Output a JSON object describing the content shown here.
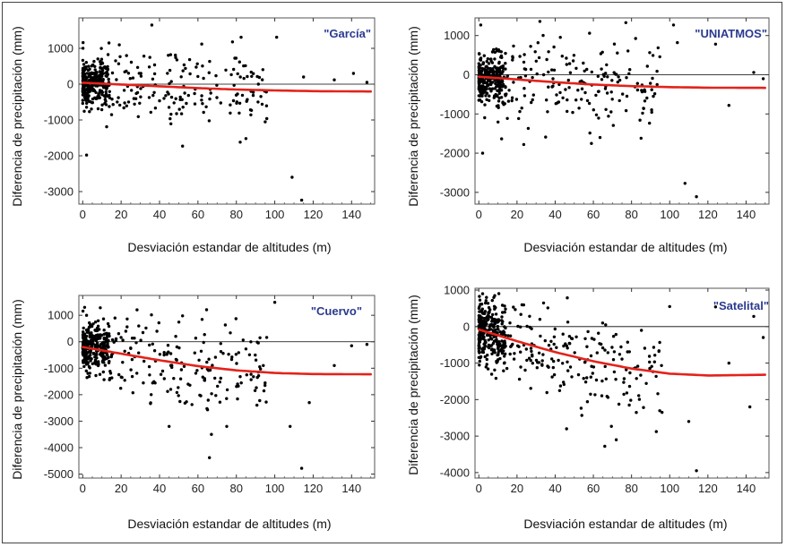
{
  "colors": {
    "points": "#000000",
    "trend": "#e3231b",
    "zero_line": "#000000",
    "panel_title": "#2b3a8f",
    "frame": "#444444"
  },
  "chart_data": [
    {
      "type": "scatter",
      "title": "\"García\"",
      "xlabel": "Desviación estandar de altitudes (m)",
      "ylabel": "Diferencia de precipitación (mm)",
      "xlim": [
        -2,
        152
      ],
      "ylim": [
        -3350,
        1850
      ],
      "xticks": [
        0,
        20,
        40,
        60,
        80,
        100,
        120,
        140
      ],
      "yticks": [
        -3000,
        -2000,
        -1000,
        0,
        1000
      ],
      "seed": 11,
      "n_dense": 260,
      "n_sparse": 190,
      "spread_dense": 420,
      "spread_sparse": 520,
      "trend": {
        "x": [
          0,
          20,
          40,
          60,
          80,
          100,
          120,
          150
        ],
        "y": [
          40,
          -10,
          -60,
          -110,
          -150,
          -175,
          -195,
          -205
        ]
      },
      "outliers": [
        {
          "x": 2,
          "y": -1980
        },
        {
          "x": 36,
          "y": 1650
        },
        {
          "x": 62,
          "y": 1120
        },
        {
          "x": 78,
          "y": 1180
        },
        {
          "x": 101,
          "y": 1310
        },
        {
          "x": 109,
          "y": -2600
        },
        {
          "x": 114,
          "y": -3240
        },
        {
          "x": 82,
          "y": -1620
        },
        {
          "x": 85,
          "y": -1520
        },
        {
          "x": 52,
          "y": -1730
        },
        {
          "x": 141,
          "y": 300
        },
        {
          "x": 148,
          "y": 50
        },
        {
          "x": 131,
          "y": 120
        },
        {
          "x": 115,
          "y": 200
        }
      ]
    },
    {
      "type": "scatter",
      "title": "\"UNIATMOS\"",
      "xlabel": "Desviación estandar de altitudes (m)",
      "ylabel": "Diferencia de precipitación (mm)",
      "xlim": [
        -2,
        152
      ],
      "ylim": [
        -3300,
        1450
      ],
      "xticks": [
        0,
        20,
        40,
        60,
        80,
        100,
        120,
        140
      ],
      "yticks": [
        -3000,
        -2000,
        -1000,
        0,
        1000
      ],
      "seed": 23,
      "n_dense": 260,
      "n_sparse": 190,
      "spread_dense": 380,
      "spread_sparse": 560,
      "trend": {
        "x": [
          0,
          20,
          40,
          60,
          80,
          100,
          120,
          150
        ],
        "y": [
          -50,
          -120,
          -190,
          -250,
          -290,
          -315,
          -330,
          -335
        ]
      },
      "outliers": [
        {
          "x": 1,
          "y": 1270
        },
        {
          "x": 2,
          "y": -2000
        },
        {
          "x": 32,
          "y": 1360
        },
        {
          "x": 58,
          "y": 1060
        },
        {
          "x": 77,
          "y": 1330
        },
        {
          "x": 102,
          "y": 1270
        },
        {
          "x": 104,
          "y": 820
        },
        {
          "x": 108,
          "y": -2770
        },
        {
          "x": 114,
          "y": -3110
        },
        {
          "x": 85,
          "y": -1620
        },
        {
          "x": 35,
          "y": -1590
        },
        {
          "x": 131,
          "y": -780
        },
        {
          "x": 144,
          "y": 60
        },
        {
          "x": 124,
          "y": 780
        },
        {
          "x": 149,
          "y": -100
        }
      ]
    },
    {
      "type": "scatter",
      "title": "\"Cuervo\"",
      "xlabel": "Desviación estandar de altitudes (m)",
      "ylabel": "Diferencia de precipitación (mm)",
      "xlim": [
        -2,
        152
      ],
      "ylim": [
        -5150,
        1750
      ],
      "xticks": [
        0,
        20,
        40,
        60,
        80,
        100,
        120,
        140
      ],
      "yticks": [
        -5000,
        -4000,
        -3000,
        -2000,
        -1000,
        0,
        1000
      ],
      "seed": 37,
      "n_dense": 260,
      "n_sparse": 200,
      "spread_dense": 600,
      "spread_sparse": 780,
      "trend": {
        "x": [
          0,
          20,
          40,
          60,
          80,
          100,
          120,
          150
        ],
        "y": [
          -200,
          -450,
          -700,
          -920,
          -1080,
          -1180,
          -1220,
          -1230
        ]
      },
      "outliers": [
        {
          "x": 1,
          "y": 1300
        },
        {
          "x": 2,
          "y": 1000
        },
        {
          "x": 100,
          "y": 1490
        },
        {
          "x": 66,
          "y": -4380
        },
        {
          "x": 114,
          "y": -4780
        },
        {
          "x": 67,
          "y": -3500
        },
        {
          "x": 108,
          "y": -3200
        },
        {
          "x": 45,
          "y": -3200
        },
        {
          "x": 75,
          "y": -3200
        },
        {
          "x": 131,
          "y": -900
        },
        {
          "x": 140,
          "y": -150
        },
        {
          "x": 148,
          "y": -100
        },
        {
          "x": 118,
          "y": -2300
        },
        {
          "x": 52,
          "y": 980
        }
      ]
    },
    {
      "type": "scatter",
      "title": "\"Satelital\"",
      "xlabel": "Desviación estandar de altitudes (m)",
      "ylabel": "Diferencia de precipitación (mm)",
      "xlim": [
        -2,
        152
      ],
      "ylim": [
        -4150,
        1050
      ],
      "xticks": [
        0,
        20,
        40,
        60,
        80,
        100,
        120,
        140
      ],
      "yticks": [
        -4000,
        -3000,
        -2000,
        -1000,
        0,
        1000
      ],
      "seed": 53,
      "n_dense": 280,
      "n_sparse": 200,
      "spread_dense": 560,
      "spread_sparse": 640,
      "trend": {
        "x": [
          0,
          20,
          40,
          60,
          80,
          100,
          120,
          150
        ],
        "y": [
          -80,
          -400,
          -700,
          -950,
          -1150,
          -1290,
          -1340,
          -1320
        ]
      },
      "outliers": [
        {
          "x": 114,
          "y": -3950
        },
        {
          "x": 72,
          "y": -3100
        },
        {
          "x": 66,
          "y": -3280
        },
        {
          "x": 110,
          "y": -2600
        },
        {
          "x": 96,
          "y": -2350
        },
        {
          "x": 142,
          "y": -2200
        },
        {
          "x": 100,
          "y": 550
        },
        {
          "x": 124,
          "y": 540
        },
        {
          "x": 144,
          "y": 280
        },
        {
          "x": 149,
          "y": -300
        },
        {
          "x": 131,
          "y": -1000
        },
        {
          "x": 46,
          "y": -2800
        },
        {
          "x": 2,
          "y": 900
        },
        {
          "x": 4,
          "y": 800
        }
      ]
    }
  ]
}
